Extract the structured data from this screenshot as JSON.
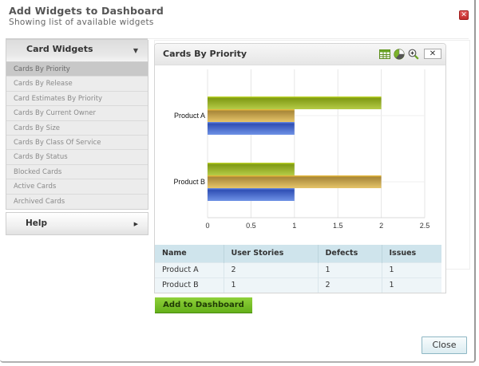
{
  "dialog": {
    "title": "Add Widgets to Dashboard",
    "subtitle": "Showing list of available widgets",
    "close_icon": "close-icon",
    "close_color": "#d03a3a"
  },
  "sidebar": {
    "card_widgets": {
      "label": "Card Widgets",
      "caret": "▼",
      "items": [
        {
          "label": "Cards By Priority",
          "active": true
        },
        {
          "label": "Cards By Release"
        },
        {
          "label": "Card Estimates By Priority"
        },
        {
          "label": "Cards By Current Owner"
        },
        {
          "label": "Cards By Size"
        },
        {
          "label": "Cards By Class Of Service"
        },
        {
          "label": "Cards By Status"
        },
        {
          "label": "Blocked Cards"
        },
        {
          "label": "Active Cards"
        },
        {
          "label": "Archived Cards"
        }
      ]
    },
    "help": {
      "label": "Help",
      "caret": "▶"
    }
  },
  "widget": {
    "title": "Cards By Priority",
    "tools": [
      "table-icon",
      "pie-chart-icon",
      "zoom-in-icon",
      "close-icon"
    ],
    "close_label": "✕"
  },
  "chart_data": {
    "type": "bar",
    "orientation": "horizontal",
    "categories": [
      "Product A",
      "Product B"
    ],
    "series": [
      {
        "name": "User Stories",
        "values": [
          2,
          1
        ],
        "color": "#8fae1f"
      },
      {
        "name": "Defects",
        "values": [
          1,
          2
        ],
        "color": "#c9a445"
      },
      {
        "name": "Issues",
        "values": [
          1,
          1
        ],
        "color": "#4566c9"
      }
    ],
    "title": "",
    "xlabel": "",
    "ylabel": "",
    "xlim": [
      0,
      2.5
    ],
    "x_ticks": [
      "0",
      "0.5",
      "1",
      "1.5",
      "2",
      "2.5"
    ],
    "grid": true,
    "legend": "none"
  },
  "table": {
    "headers": [
      "Name",
      "User Stories",
      "Defects",
      "Issues"
    ],
    "rows": [
      [
        "Product A",
        "2",
        "1",
        "1"
      ],
      [
        "Product B",
        "1",
        "2",
        "1"
      ]
    ]
  },
  "buttons": {
    "add_to_dashboard": "Add to Dashboard",
    "close": "Close"
  }
}
